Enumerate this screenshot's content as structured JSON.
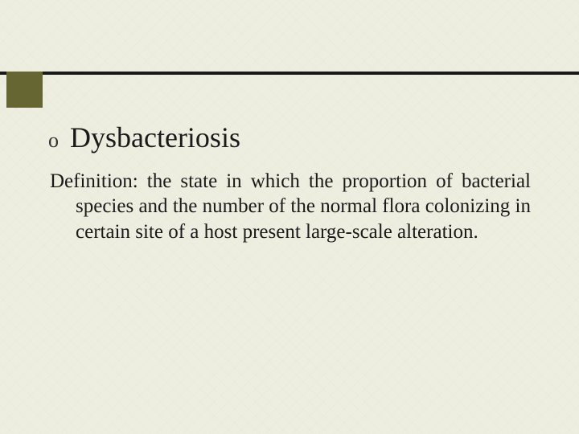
{
  "slide": {
    "bullet": "o",
    "title": "Dysbacteriosis",
    "definition": "Definition: the state in which the proportion of bacterial species and the number of the normal flora colonizing in certain site of a host present large-scale alteration."
  },
  "style": {
    "background_color": "#eeeee0",
    "top_bar_color": "#1a1a1a",
    "accent_block_color": "#666633",
    "title_fontsize": 36,
    "body_fontsize": 25,
    "text_color": "#1a1a1a",
    "font_family": "Times New Roman"
  }
}
